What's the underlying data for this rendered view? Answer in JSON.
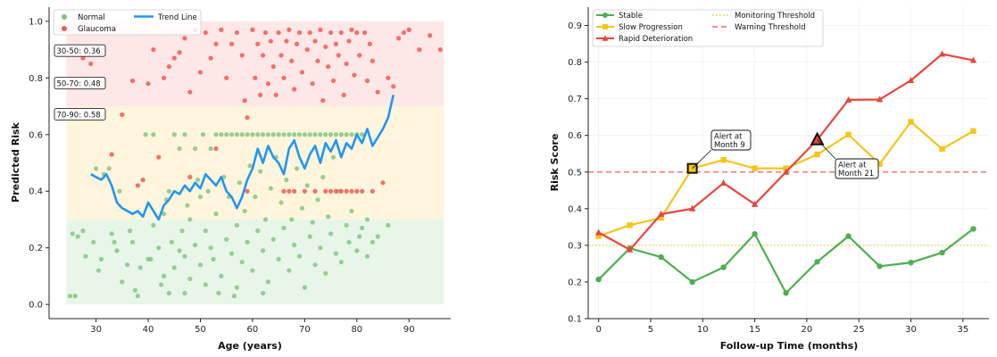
{
  "chart_data": [
    {
      "type": "scatter",
      "xlabel": "Age (years)",
      "ylabel": "Predicted Risk",
      "xlim": [
        21,
        98
      ],
      "ylim": [
        -0.05,
        1.05
      ],
      "xticks": [
        30,
        40,
        50,
        60,
        70,
        80,
        90
      ],
      "yticks": [
        0.0,
        0.2,
        0.4,
        0.6,
        0.8,
        1.0
      ],
      "bands": [
        {
          "from": 0.0,
          "to": 0.3,
          "color": "#e8f5e9"
        },
        {
          "from": 0.3,
          "to": 0.7,
          "color": "#fff5dc"
        },
        {
          "from": 0.7,
          "to": 1.0,
          "color": "#fde7e7"
        }
      ],
      "legend": [
        {
          "label": "Normal",
          "color": "#7cc47a",
          "kind": "point"
        },
        {
          "label": "Glaucoma",
          "color": "#ef5b50",
          "kind": "point"
        },
        {
          "label": "Trend Line",
          "color": "#2196f3",
          "kind": "line"
        }
      ],
      "annotations": [
        {
          "text": "30-50: 0.36",
          "y": 0.895
        },
        {
          "text": "50-70: 0.48",
          "y": 0.78
        },
        {
          "text": "70-90: 0.58",
          "y": 0.67
        }
      ],
      "normal_points": [
        [
          25,
          0.03
        ],
        [
          26,
          0.03
        ],
        [
          25.5,
          0.25
        ],
        [
          26.5,
          0.24
        ],
        [
          27.5,
          0.26
        ],
        [
          28,
          0.17
        ],
        [
          29.5,
          0.22
        ],
        [
          30,
          0.48
        ],
        [
          30.5,
          0.12
        ],
        [
          31,
          0.16
        ],
        [
          31.5,
          0.46
        ],
        [
          32.5,
          0.48
        ],
        [
          33,
          0.25
        ],
        [
          33.5,
          0.22
        ],
        [
          34,
          0.19
        ],
        [
          34.5,
          0.4
        ],
        [
          35,
          0.08
        ],
        [
          36,
          0.14
        ],
        [
          36.5,
          0.26
        ],
        [
          37,
          0.22
        ],
        [
          37.5,
          0.05
        ],
        [
          38,
          0.03
        ],
        [
          38.5,
          0.13
        ],
        [
          39.5,
          0.6
        ],
        [
          40,
          0.16
        ],
        [
          40.5,
          0.16
        ],
        [
          41,
          0.6
        ],
        [
          41,
          0.28
        ],
        [
          42,
          0.2
        ],
        [
          42.5,
          0.07
        ],
        [
          43,
          0.32
        ],
        [
          43,
          0.1
        ],
        [
          43.5,
          0.37
        ],
        [
          44,
          0.4
        ],
        [
          44,
          0.04
        ],
        [
          44.5,
          0.22
        ],
        [
          45,
          0.6
        ],
        [
          45,
          0.13
        ],
        [
          46,
          0.55
        ],
        [
          46,
          0.19
        ],
        [
          46.5,
          0.26
        ],
        [
          47,
          0.6
        ],
        [
          47,
          0.17
        ],
        [
          47.5,
          0.35
        ],
        [
          48,
          0.09
        ],
        [
          48,
          0.3
        ],
        [
          49,
          0.55
        ],
        [
          49,
          0.21
        ],
        [
          49.5,
          0.44
        ],
        [
          50,
          0.38
        ],
        [
          50,
          0.14
        ],
        [
          50.5,
          0.6
        ],
        [
          51,
          0.26
        ],
        [
          51,
          0.07
        ],
        [
          51.5,
          0.4
        ],
        [
          52,
          0.55
        ],
        [
          52,
          0.2
        ],
        [
          52.5,
          0.16
        ],
        [
          53,
          0.6
        ],
        [
          53,
          0.32
        ],
        [
          53.5,
          0.04
        ],
        [
          54,
          0.6
        ],
        [
          54,
          0.1
        ],
        [
          54.5,
          0.45
        ],
        [
          55,
          0.6
        ],
        [
          55,
          0.23
        ],
        [
          55.5,
          0.38
        ],
        [
          56,
          0.6
        ],
        [
          56,
          0.18
        ],
        [
          56.5,
          0.03
        ],
        [
          57,
          0.6
        ],
        [
          57,
          0.28
        ],
        [
          57.5,
          0.43
        ],
        [
          58,
          0.6
        ],
        [
          58,
          0.15
        ],
        [
          58.5,
          0.33
        ],
        [
          59,
          0.6
        ],
        [
          59,
          0.22
        ],
        [
          59.5,
          0.49
        ],
        [
          60,
          0.6
        ],
        [
          60,
          0.12
        ],
        [
          60.5,
          0.38
        ],
        [
          61,
          0.6
        ],
        [
          61,
          0.26
        ],
        [
          61.5,
          0.47
        ],
        [
          62,
          0.6
        ],
        [
          62,
          0.19
        ],
        [
          62.5,
          0.3
        ],
        [
          63,
          0.6
        ],
        [
          63,
          0.08
        ],
        [
          63.5,
          0.41
        ],
        [
          64,
          0.6
        ],
        [
          64,
          0.23
        ],
        [
          64.5,
          0.52
        ],
        [
          65,
          0.6
        ],
        [
          65,
          0.16
        ],
        [
          65.5,
          0.36
        ],
        [
          66,
          0.6
        ],
        [
          66,
          0.27
        ],
        [
          66.5,
          0.44
        ],
        [
          67,
          0.6
        ],
        [
          67,
          0.12
        ],
        [
          67.5,
          0.3
        ],
        [
          68,
          0.6
        ],
        [
          68,
          0.21
        ],
        [
          68.5,
          0.48
        ],
        [
          69,
          0.6
        ],
        [
          69,
          0.17
        ],
        [
          69.5,
          0.34
        ],
        [
          70,
          0.6
        ],
        [
          70,
          0.06
        ],
        [
          70.5,
          0.42
        ],
        [
          71,
          0.6
        ],
        [
          71,
          0.24
        ],
        [
          71.5,
          0.29
        ],
        [
          72,
          0.6
        ],
        [
          72,
          0.14
        ],
        [
          72.5,
          0.37
        ],
        [
          73,
          0.6
        ],
        [
          73,
          0.2
        ],
        [
          73.5,
          0.45
        ],
        [
          74,
          0.6
        ],
        [
          74,
          0.11
        ],
        [
          74.5,
          0.31
        ],
        [
          75,
          0.6
        ],
        [
          75,
          0.25
        ],
        [
          75.5,
          0.52
        ],
        [
          76,
          0.6
        ],
        [
          76,
          0.18
        ],
        [
          76.5,
          0.4
        ],
        [
          77,
          0.6
        ],
        [
          77,
          0.15
        ],
        [
          78,
          0.6
        ],
        [
          78,
          0.28
        ],
        [
          78.5,
          0.22
        ],
        [
          79,
          0.6
        ],
        [
          79,
          0.33
        ],
        [
          80,
          0.6
        ],
        [
          80,
          0.19
        ],
        [
          80.5,
          0.24
        ],
        [
          81,
          0.6
        ],
        [
          81,
          0.27
        ],
        [
          82,
          0.3
        ],
        [
          82,
          0.17
        ],
        [
          83,
          0.22
        ],
        [
          84,
          0.24
        ],
        [
          86,
          0.28
        ],
        [
          62,
          0.04
        ],
        [
          57,
          0.06
        ],
        [
          47,
          0.04
        ]
      ],
      "glaucoma_points": [
        [
          27.5,
          0.87
        ],
        [
          29,
          0.85
        ],
        [
          33,
          0.53
        ],
        [
          35,
          0.67
        ],
        [
          37,
          0.79
        ],
        [
          38,
          0.42
        ],
        [
          39,
          0.44
        ],
        [
          40,
          0.78
        ],
        [
          41,
          0.9
        ],
        [
          42,
          0.52
        ],
        [
          43,
          0.8
        ],
        [
          44,
          0.84
        ],
        [
          45,
          0.87
        ],
        [
          46,
          0.89
        ],
        [
          47,
          0.94
        ],
        [
          48,
          0.75
        ],
        [
          49,
          0.97
        ],
        [
          50,
          0.82
        ],
        [
          51,
          0.96
        ],
        [
          52,
          0.87
        ],
        [
          53,
          0.92
        ],
        [
          54,
          0.97
        ],
        [
          55,
          0.8
        ],
        [
          56,
          0.92
        ],
        [
          57,
          0.96
        ],
        [
          58,
          0.88
        ],
        [
          58.5,
          0.72
        ],
        [
          59,
          0.66
        ],
        [
          60,
          0.97
        ],
        [
          60.5,
          0.8
        ],
        [
          61,
          0.92
        ],
        [
          61.5,
          0.74
        ],
        [
          62,
          0.88
        ],
        [
          62.5,
          0.96
        ],
        [
          63,
          0.78
        ],
        [
          63.5,
          0.93
        ],
        [
          64,
          0.84
        ],
        [
          64.5,
          0.74
        ],
        [
          65,
          0.96
        ],
        [
          65.5,
          0.88
        ],
        [
          66,
          0.8
        ],
        [
          66.5,
          0.93
        ],
        [
          67,
          0.97
        ],
        [
          67.5,
          0.86
        ],
        [
          68,
          0.76
        ],
        [
          68.5,
          0.92
        ],
        [
          69,
          0.96
        ],
        [
          69.5,
          0.82
        ],
        [
          70,
          0.4
        ],
        [
          70.5,
          0.9
        ],
        [
          71,
          0.96
        ],
        [
          71.5,
          0.78
        ],
        [
          72,
          0.93
        ],
        [
          72.5,
          0.86
        ],
        [
          73,
          0.97
        ],
        [
          73.5,
          0.72
        ],
        [
          74,
          0.91
        ],
        [
          74.5,
          0.84
        ],
        [
          75,
          0.96
        ],
        [
          75.5,
          0.79
        ],
        [
          76,
          0.92
        ],
        [
          76.5,
          0.88
        ],
        [
          77,
          0.96
        ],
        [
          77.5,
          0.74
        ],
        [
          78,
          0.85
        ],
        [
          78.5,
          0.93
        ],
        [
          79,
          0.97
        ],
        [
          79.5,
          0.81
        ],
        [
          80,
          0.96
        ],
        [
          80.5,
          0.88
        ],
        [
          81,
          0.4
        ],
        [
          81.5,
          0.96
        ],
        [
          82,
          0.79
        ],
        [
          82.5,
          0.92
        ],
        [
          83,
          0.86
        ],
        [
          84,
          0.75
        ],
        [
          85,
          0.43
        ],
        [
          86,
          0.8
        ],
        [
          87,
          0.77
        ],
        [
          88,
          0.94
        ],
        [
          89,
          0.96
        ],
        [
          90,
          0.97
        ],
        [
          92,
          0.9
        ],
        [
          94,
          0.95
        ],
        [
          96,
          0.9
        ],
        [
          66,
          0.4
        ],
        [
          67,
          0.4
        ],
        [
          68,
          0.4
        ],
        [
          72,
          0.4
        ],
        [
          74,
          0.4
        ],
        [
          75,
          0.4
        ],
        [
          76,
          0.4
        ],
        [
          77,
          0.4
        ],
        [
          78,
          0.4
        ],
        [
          79,
          0.4
        ],
        [
          80,
          0.4
        ],
        [
          83,
          0.4
        ],
        [
          59,
          0.4
        ],
        [
          48,
          0.45
        ],
        [
          53,
          0.55
        ]
      ],
      "trend": [
        [
          29,
          0.46
        ],
        [
          30,
          0.45
        ],
        [
          31,
          0.44
        ],
        [
          32,
          0.46
        ],
        [
          33,
          0.42
        ],
        [
          34,
          0.36
        ],
        [
          35,
          0.34
        ],
        [
          36,
          0.33
        ],
        [
          37,
          0.32
        ],
        [
          38,
          0.33
        ],
        [
          39,
          0.31
        ],
        [
          40,
          0.36
        ],
        [
          41,
          0.33
        ],
        [
          42,
          0.3
        ],
        [
          43,
          0.35
        ],
        [
          44,
          0.37
        ],
        [
          45,
          0.4
        ],
        [
          46,
          0.39
        ],
        [
          47,
          0.42
        ],
        [
          48,
          0.4
        ],
        [
          49,
          0.43
        ],
        [
          50,
          0.41
        ],
        [
          51,
          0.46
        ],
        [
          52,
          0.44
        ],
        [
          53,
          0.42
        ],
        [
          54,
          0.45
        ],
        [
          55,
          0.4
        ],
        [
          56,
          0.38
        ],
        [
          57,
          0.34
        ],
        [
          58,
          0.38
        ],
        [
          59,
          0.44
        ],
        [
          60,
          0.48
        ],
        [
          61,
          0.55
        ],
        [
          62,
          0.5
        ],
        [
          63,
          0.56
        ],
        [
          64,
          0.52
        ],
        [
          65,
          0.5
        ],
        [
          66,
          0.46
        ],
        [
          67,
          0.55
        ],
        [
          68,
          0.58
        ],
        [
          69,
          0.52
        ],
        [
          70,
          0.48
        ],
        [
          71,
          0.53
        ],
        [
          72,
          0.56
        ],
        [
          73,
          0.5
        ],
        [
          74,
          0.57
        ],
        [
          75,
          0.54
        ],
        [
          76,
          0.58
        ],
        [
          77,
          0.52
        ],
        [
          78,
          0.57
        ],
        [
          79,
          0.55
        ],
        [
          80,
          0.6
        ],
        [
          81,
          0.57
        ],
        [
          82,
          0.62
        ],
        [
          83,
          0.56
        ],
        [
          84,
          0.59
        ],
        [
          85,
          0.62
        ],
        [
          86,
          0.66
        ],
        [
          87,
          0.74
        ]
      ]
    },
    {
      "type": "line",
      "xlabel": "Follow-up Time (months)",
      "ylabel": "Risk Score",
      "xlim": [
        -1,
        37.5
      ],
      "ylim": [
        0.1,
        0.95
      ],
      "xticks": [
        0,
        5,
        10,
        15,
        20,
        25,
        30,
        35
      ],
      "yticks": [
        0.1,
        0.2,
        0.3,
        0.4,
        0.5,
        0.6,
        0.7,
        0.8,
        0.9
      ],
      "x": [
        0,
        3,
        6,
        9,
        12,
        15,
        18,
        21,
        24,
        27,
        30,
        33,
        36
      ],
      "series": [
        {
          "name": "Stable",
          "color": "#4caf50",
          "marker": "circle",
          "values": [
            0.207,
            0.292,
            0.268,
            0.2,
            0.24,
            0.331,
            0.17,
            0.255,
            0.325,
            0.243,
            0.253,
            0.28,
            0.345
          ]
        },
        {
          "name": "Slow Progression",
          "color": "#f5c518",
          "marker": "square",
          "values": [
            0.325,
            0.355,
            0.375,
            0.51,
            0.533,
            0.51,
            0.51,
            0.548,
            0.602,
            0.522,
            0.637,
            0.563,
            0.612
          ]
        },
        {
          "name": "Rapid Deterioration",
          "color": "#e8453c",
          "marker": "triangle",
          "values": [
            0.335,
            0.288,
            0.385,
            0.4,
            0.47,
            0.412,
            0.5,
            0.588,
            0.697,
            0.698,
            0.75,
            0.822,
            0.805
          ]
        }
      ],
      "thresholds": [
        {
          "name": "Monitoring Threshold",
          "value": 0.3,
          "color": "#f5c518",
          "style": "dotted"
        },
        {
          "name": "Warning Threshold",
          "value": 0.5,
          "color": "#ef6b63",
          "style": "dashed"
        }
      ],
      "alerts": [
        {
          "line1": "Alert at",
          "line2": "Month 9",
          "x": 9,
          "y": 0.51,
          "marker": "square"
        },
        {
          "line1": "Alert at",
          "line2": "Month 21",
          "x": 21,
          "y": 0.588,
          "marker": "triangle"
        }
      ]
    }
  ]
}
